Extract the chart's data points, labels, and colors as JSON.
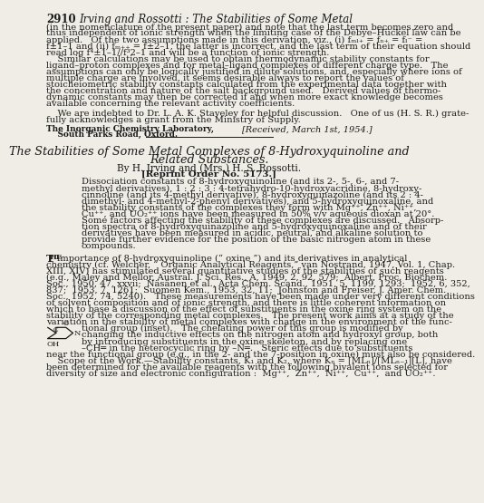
{
  "page_number": "2910",
  "header_italic": "Irving and Rossotti : The Stabilities of Some Metal",
  "background_color": "#f0ede6",
  "text_color": "#1a1a1a",
  "para1_lines": [
    "(in the nomenclature of the present paper) and note that the last term becomes zero and",
    "thus independent of ionic strength when the limiting case of the Debye–Hückel law can be",
    "applied.   Of the two assumptions made in this derivation, viz., (i) fₘₗ₊ = fₙ₊ = fₗ⁻ =",
    "f±1–1 and (ii) fₘ₊₊ = f±2–1, the latter is incorrect, and the last term of their equation should",
    "read log f⁴±1–1//f³2–1 and will be a function of ionic strength."
  ],
  "para2_lines": [
    "    Similar calculations may be used to obtain thermodynamic stability constants for",
    "ligand–proton complexes and for metal–ligand complexes of different charge type.   The",
    "assumptions can only be logically justified in dilute solutions, and, especially where ions of",
    "multiple charge are involved, it seems desirable always to report the values of",
    "stoicheiometric stability constants calculated from the experimental data together with",
    "the concentration and nature of the salt background used.   Derived values of thermo-",
    "dynamic constants may then be corrected if and when more exact knowledge becomes",
    "available concerning the relevant activity coefficients."
  ],
  "ack_lines": [
    "    We are indebted to Dr. L. A. K. Staveley for helpful discussion.   One of us (H. S. R.) grate-",
    "fully acknowledges a grant from the Ministry of Supply."
  ],
  "addr_line1": "The Inorganic Chemistry Laboratory,",
  "addr_line2": "    South Parks Road, Oxford.",
  "received": "[Received, March 1st, 1954.]",
  "title_line1": "The Stabilities of Some Metal Complexes of 8-Hydroxyquinoline and",
  "title_line2": "Related Substances.",
  "byline": "By H. Irving and (Mrs.) H. S. Rossotti.",
  "reprint": "[Reprint Order No. 5173.]",
  "abstract_lines": [
    "Dissociation constants of 8-hydroxyquinoline (and its 2-, 5-, 6-, and 7-",
    "methyl derivatives), 1 : 2 : 3 : 4-tetrahydro-10-hydroxyacridine, 8-hydroxy-",
    "cinnoline (and its 4-methyl derivative), 8-hydroxyquinazoline (and its 2 : 4-",
    "dimethyl- and 4-methyl-2-phenyl derivatives), and 5-hydroxyquinoxaline, and",
    "the stability constants of the complexes they form with Mg⁺⁺, Zn⁺⁺, Ni⁺⁺,",
    "Cu⁺⁺, and UO₂⁺⁺ ions have been measured in 50% v/v aqueous dioxan at 20°.",
    "Some factors affecting the stability of these complexes are discussed.   Absorp-",
    "tion spectra of 8-hydroxyquinazoline and 5-hydroxyquinoxaline and of their",
    "derivatives have been measured in acidic, neutral, and alkaline solution to",
    "provide further evidence for the position of the basic nitrogen atom in these",
    "compounds."
  ],
  "body1_full_lines": [
    "The importance of 8-hydroxyquinoline (“ oxine ”) and its derivatives in analytical",
    "chemistry (cf. Welcher, “ Organic Analytical Reagents,” van Nostrand, 1947, Vol. 1, Chap.",
    "XIII, XIV) has stimulated several quantitative studies of the stabilities of such reagents",
    "(e.g., Maley and Mellor, Austral. J. Sci. Res., A, 1949, 2, 92, 579;  Albert, Proc. Biochem.",
    "Soc., 1950, 47, xxvii;  Näsänen et al., Acta Chem. Scand., 1951, 5, 1199, 1293;  1952, 6, 352,",
    "837;  1953, 7, 1261;  Suomen Kem., 1953, 32, 11;  Johnston and Freiser, J. Amer. Chem.",
    "Soc., 1952, 74, 5240).   These measurements have been made under very different conditions",
    "of solvent composition and of ionic strength, and there is little coherent information on",
    "which to base a discussion of the effect of substituents in the oxine ring system on the",
    "stability of the corresponding metal complexes.   The present work aims at a study of the",
    "variation in the stability of metal complexes with change in the environment of the func-"
  ],
  "body1_inset_lines": [
    "tional group (inset).   The chelating power of this group is modified by",
    "changing the inductive effects on the nitrogen atom and hydroxyl group, both",
    "by introducing substituents in the oxine skeleton, and by replacing one",
    "–CH═ in the heterocyclic ring by –N═.   Steric effects due to substituents"
  ],
  "body1_last": "near the functional group (e.g., in the 2- and the 7-position in oxine) must also be considered.",
  "body2_lines": [
    "    Scope of the Work.—Stability constants, K₁ and K₂, where Kₙ = [MLₙ]/[MLₙ₋₁][L], have",
    "been determined for the available reagents with the following bivalent ions selected for",
    "diversity of size and electronic configuration :  Mg⁺⁺,  Zn⁺⁺,  Ni⁺⁺,  Cu⁺⁺,  and UO₂⁺⁺."
  ]
}
